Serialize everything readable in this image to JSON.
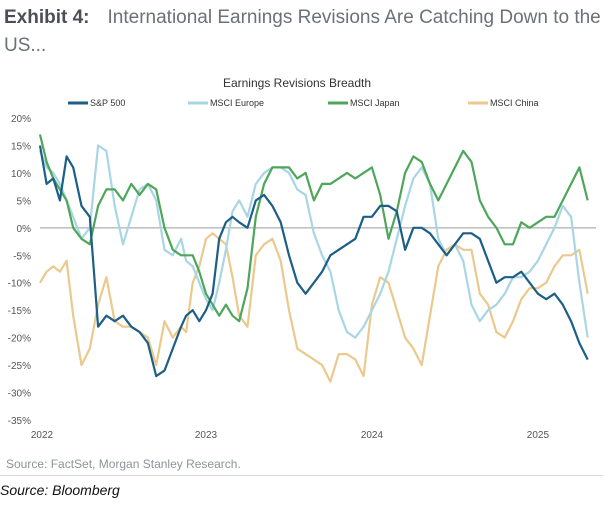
{
  "exhibit": {
    "number": "Exhibit 4:",
    "title": "International Earnings Revisions Are Catching Down to the US..."
  },
  "source_line": "Source: FactSet, Morgan Stanley Research.",
  "source_caption": "Source: Bloomberg",
  "chart_data": {
    "type": "line",
    "title": "Earnings Revisions Breadth",
    "xlabel": "",
    "ylabel": "",
    "x_ticks": [
      "2022",
      "2023",
      "2024",
      "2025"
    ],
    "y_ticks": [
      "20%",
      "15%",
      "10%",
      "5%",
      "0%",
      "-5%",
      "-10%",
      "-15%",
      "-20%",
      "-25%",
      "-30%",
      "-35%"
    ],
    "ylim": [
      -35,
      20
    ],
    "xlim": [
      2022.0,
      2025.35
    ],
    "legend_position": "top",
    "zero_line": true,
    "series": [
      {
        "name": "S&P 500",
        "color": "#1d5f86",
        "x": [
          2022.0,
          2022.04,
          2022.08,
          2022.12,
          2022.16,
          2022.2,
          2022.25,
          2022.3,
          2022.35,
          2022.4,
          2022.45,
          2022.5,
          2022.55,
          2022.6,
          2022.65,
          2022.7,
          2022.75,
          2022.8,
          2022.85,
          2022.88,
          2022.92,
          2022.96,
          2023.0,
          2023.04,
          2023.08,
          2023.12,
          2023.16,
          2023.2,
          2023.25,
          2023.3,
          2023.35,
          2023.4,
          2023.45,
          2023.5,
          2023.55,
          2023.6,
          2023.65,
          2023.7,
          2023.75,
          2023.8,
          2023.85,
          2023.9,
          2023.95,
          2024.0,
          2024.05,
          2024.1,
          2024.15,
          2024.2,
          2024.25,
          2024.3,
          2024.35,
          2024.4,
          2024.45,
          2024.5,
          2024.55,
          2024.6,
          2024.65,
          2024.7,
          2024.75,
          2024.8,
          2024.85,
          2024.9,
          2024.95,
          2025.0,
          2025.05,
          2025.1,
          2025.15,
          2025.2,
          2025.25,
          2025.3
        ],
        "values": [
          15,
          8,
          9,
          5,
          13,
          11,
          4,
          2,
          -18,
          -16,
          -17,
          -16,
          -18,
          -19,
          -21,
          -27,
          -26,
          -22,
          -18,
          -16,
          -15,
          -17,
          -15,
          -12,
          -2,
          1,
          2,
          1,
          0,
          5,
          6,
          4,
          1,
          -5,
          -10,
          -12,
          -10,
          -8,
          -5,
          -4,
          -3,
          -2,
          2,
          2,
          4,
          4,
          3,
          -4,
          0,
          0,
          -1,
          -3,
          -5,
          -3,
          -1,
          -1,
          -2,
          -6,
          -10,
          -9,
          -9,
          -8,
          -10,
          -12,
          -13,
          -12,
          -14,
          -17,
          -21,
          -24
        ]
      },
      {
        "name": "MSCI Europe",
        "color": "#a9d6e4",
        "x": [
          2022.0,
          2022.04,
          2022.08,
          2022.12,
          2022.16,
          2022.2,
          2022.25,
          2022.3,
          2022.35,
          2022.4,
          2022.45,
          2022.5,
          2022.55,
          2022.6,
          2022.65,
          2022.7,
          2022.75,
          2022.8,
          2022.85,
          2022.88,
          2022.92,
          2022.96,
          2023.0,
          2023.04,
          2023.08,
          2023.12,
          2023.16,
          2023.2,
          2023.25,
          2023.3,
          2023.35,
          2023.4,
          2023.45,
          2023.5,
          2023.55,
          2023.6,
          2023.65,
          2023.7,
          2023.75,
          2023.8,
          2023.85,
          2023.9,
          2023.95,
          2024.0,
          2024.05,
          2024.1,
          2024.15,
          2024.2,
          2024.25,
          2024.3,
          2024.35,
          2024.4,
          2024.45,
          2024.5,
          2024.55,
          2024.6,
          2024.65,
          2024.7,
          2024.75,
          2024.8,
          2024.85,
          2024.9,
          2024.95,
          2025.0,
          2025.05,
          2025.1,
          2025.15,
          2025.2,
          2025.25,
          2025.3
        ],
        "values": [
          14,
          11,
          10,
          8,
          5,
          2,
          -2,
          0,
          15,
          14,
          4,
          -3,
          2,
          7,
          8,
          5,
          -4,
          -5,
          -2,
          -6,
          -7,
          -10,
          -13,
          -15,
          -10,
          -4,
          3,
          5,
          2,
          8,
          10,
          11,
          11,
          10,
          7,
          6,
          -1,
          -5,
          -8,
          -15,
          -19,
          -20,
          -18,
          -15,
          -12,
          -8,
          -2,
          4,
          9,
          11,
          8,
          -2,
          -5,
          -3,
          -6,
          -14,
          -17,
          -15,
          -14,
          -12,
          -9,
          -9,
          -8,
          -6,
          -3,
          0,
          4,
          2,
          -10,
          -20
        ]
      },
      {
        "name": "MSCI Japan",
        "color": "#4ea65b",
        "x": [
          2022.0,
          2022.04,
          2022.08,
          2022.12,
          2022.16,
          2022.2,
          2022.25,
          2022.3,
          2022.35,
          2022.4,
          2022.45,
          2022.5,
          2022.55,
          2022.6,
          2022.65,
          2022.7,
          2022.75,
          2022.8,
          2022.85,
          2022.88,
          2022.92,
          2022.96,
          2023.0,
          2023.04,
          2023.08,
          2023.12,
          2023.16,
          2023.2,
          2023.25,
          2023.3,
          2023.35,
          2023.4,
          2023.45,
          2023.5,
          2023.55,
          2023.6,
          2023.65,
          2023.7,
          2023.75,
          2023.8,
          2023.85,
          2023.9,
          2023.95,
          2024.0,
          2024.05,
          2024.1,
          2024.15,
          2024.2,
          2024.25,
          2024.3,
          2024.35,
          2024.4,
          2024.45,
          2024.5,
          2024.55,
          2024.6,
          2024.65,
          2024.7,
          2024.75,
          2024.8,
          2024.85,
          2024.9,
          2024.95,
          2025.0,
          2025.05,
          2025.1,
          2025.15,
          2025.2,
          2025.25,
          2025.3
        ],
        "values": [
          17,
          12,
          9,
          7,
          5,
          0,
          -2,
          -3,
          4,
          7,
          7,
          5,
          8,
          6,
          8,
          7,
          0,
          -4,
          -5,
          -5,
          -5,
          -8,
          -12,
          -14,
          -16,
          -14,
          -16,
          -17,
          -11,
          2,
          8,
          11,
          11,
          11,
          9,
          10,
          5,
          8,
          8,
          9,
          10,
          9,
          10,
          11,
          6,
          -2,
          3,
          10,
          13,
          12,
          8,
          5,
          8,
          11,
          14,
          12,
          5,
          2,
          0,
          -3,
          -3,
          1,
          0,
          1,
          2,
          2,
          5,
          8,
          11,
          5
        ]
      },
      {
        "name": "MSCI China",
        "color": "#ebc98d",
        "x": [
          2022.0,
          2022.04,
          2022.08,
          2022.12,
          2022.16,
          2022.2,
          2022.25,
          2022.3,
          2022.35,
          2022.4,
          2022.45,
          2022.5,
          2022.55,
          2022.6,
          2022.65,
          2022.7,
          2022.75,
          2022.8,
          2022.85,
          2022.88,
          2022.92,
          2022.96,
          2023.0,
          2023.04,
          2023.08,
          2023.12,
          2023.16,
          2023.2,
          2023.25,
          2023.3,
          2023.35,
          2023.4,
          2023.45,
          2023.5,
          2023.55,
          2023.6,
          2023.65,
          2023.7,
          2023.75,
          2023.8,
          2023.85,
          2023.9,
          2023.95,
          2024.0,
          2024.05,
          2024.1,
          2024.15,
          2024.2,
          2024.25,
          2024.3,
          2024.35,
          2024.4,
          2024.45,
          2024.5,
          2024.55,
          2024.6,
          2024.65,
          2024.7,
          2024.75,
          2024.8,
          2024.85,
          2024.9,
          2024.95,
          2025.0,
          2025.05,
          2025.1,
          2025.15,
          2025.2,
          2025.25,
          2025.3
        ],
        "values": [
          -10,
          -8,
          -7,
          -8,
          -6,
          -16,
          -25,
          -22,
          -14,
          -9,
          -17,
          -18,
          -18,
          -19,
          -20,
          -25,
          -17,
          -20,
          -18,
          -19,
          -10,
          -7,
          -2,
          -1,
          -2,
          -3,
          -9,
          -16,
          -18,
          -5,
          -3,
          -2,
          -6,
          -15,
          -22,
          -23,
          -24,
          -25,
          -28,
          -23,
          -23,
          -24,
          -27,
          -14,
          -9,
          -10,
          -15,
          -20,
          -22,
          -25,
          -16,
          -7,
          -4,
          -3,
          -4,
          -4,
          -12,
          -14,
          -19,
          -20,
          -17,
          -13,
          -11,
          -11,
          -10,
          -7,
          -5,
          -5,
          -4,
          -12
        ]
      }
    ]
  }
}
